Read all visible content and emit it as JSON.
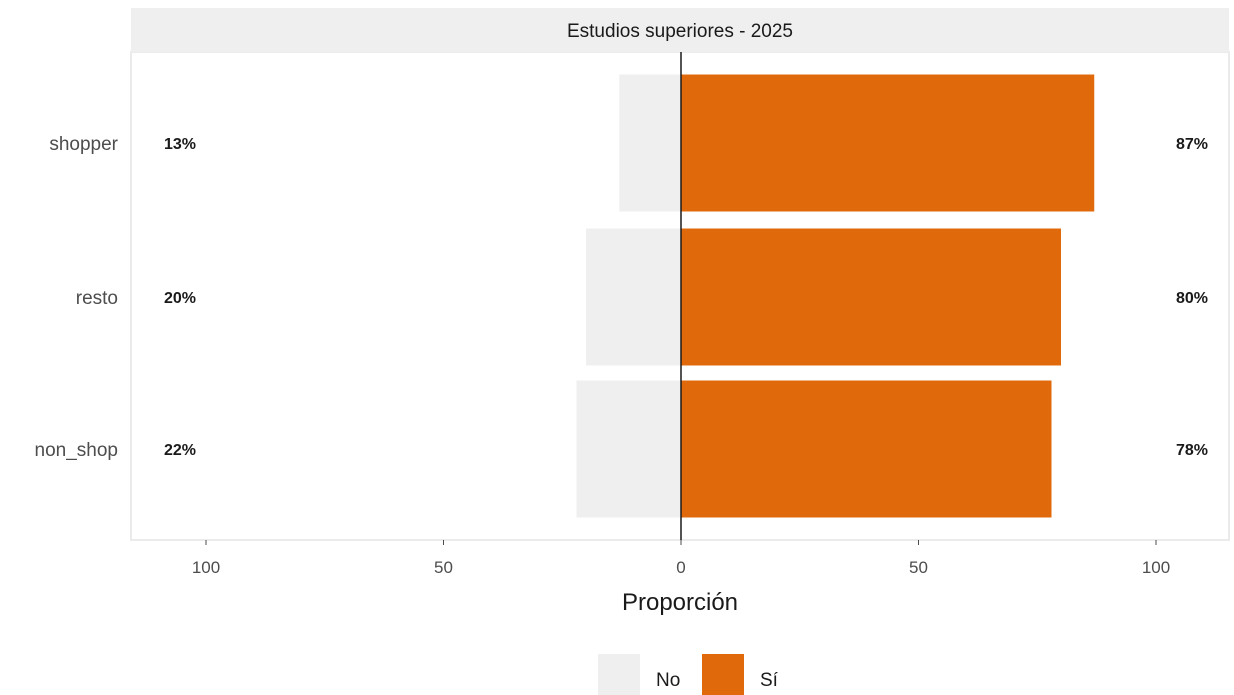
{
  "chart_data": {
    "type": "bar",
    "orientation": "horizontal-diverging",
    "title": "Estudios superiores - 2025",
    "xlabel": "Proporción",
    "ylabel": "",
    "xlim": [
      -100,
      100
    ],
    "x_ticks": [
      {
        "value": -100,
        "label": "100"
      },
      {
        "value": -50,
        "label": "50"
      },
      {
        "value": 0,
        "label": "0"
      },
      {
        "value": 50,
        "label": "50"
      },
      {
        "value": 100,
        "label": "100"
      }
    ],
    "categories": [
      "shopper",
      "resto",
      "non_shop"
    ],
    "series": [
      {
        "name": "No",
        "color": "#efefef",
        "values": [
          13,
          20,
          22
        ],
        "labels": [
          "13%",
          "20%",
          "22%"
        ]
      },
      {
        "name": "Sí",
        "color": "#e06a0b",
        "values": [
          87,
          80,
          78
        ],
        "labels": [
          "87%",
          "80%",
          "78%"
        ]
      }
    ],
    "grid": false,
    "legend_position": "bottom"
  }
}
